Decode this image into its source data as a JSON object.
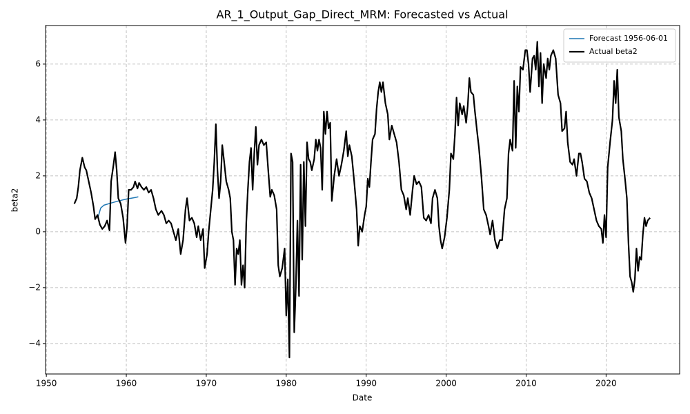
{
  "chart_data": {
    "type": "line",
    "title": "AR_1_Output_Gap_Direct_MRM: Forecasted vs Actual",
    "xlabel": "Date",
    "ylabel": "beta2",
    "xlim": [
      1949.9,
      2029.2
    ],
    "ylim": [
      -5.09,
      7.38
    ],
    "xticks": [
      1950,
      1960,
      1970,
      1980,
      1990,
      2000,
      2010,
      2020
    ],
    "yticks": [
      {
        "value": -4,
        "label": "−4"
      },
      {
        "value": -2,
        "label": "−2"
      },
      0,
      2,
      4,
      6
    ],
    "grid": true,
    "legend": "upper right",
    "series": [
      {
        "name": "Forecast 1956-06-01",
        "color": "#1f77b4",
        "width": 1.5,
        "x": [
          1956.5,
          1956.8,
          1957.2,
          1958,
          1959,
          1960,
          1961,
          1961.5
        ],
        "values": [
          0.55,
          0.85,
          0.95,
          1.02,
          1.1,
          1.17,
          1.22,
          1.25
        ]
      },
      {
        "name": "Actual beta2",
        "color": "#000000",
        "width": 2.2,
        "x": [
          1953.5,
          1953.8,
          1954.0,
          1954.2,
          1954.5,
          1954.8,
          1955.0,
          1955.3,
          1955.6,
          1955.9,
          1956.1,
          1956.4,
          1956.7,
          1957.0,
          1957.3,
          1957.6,
          1957.9,
          1958.1,
          1958.4,
          1958.6,
          1958.8,
          1959.0,
          1959.3,
          1959.6,
          1959.9,
          1960.1,
          1960.3,
          1960.6,
          1960.9,
          1961.1,
          1961.4,
          1961.6,
          1961.9,
          1962.2,
          1962.5,
          1962.8,
          1963.1,
          1963.4,
          1963.7,
          1964.0,
          1964.4,
          1964.7,
          1965.0,
          1965.3,
          1965.6,
          1965.9,
          1966.2,
          1966.5,
          1966.8,
          1967.1,
          1967.4,
          1967.6,
          1967.9,
          1968.2,
          1968.5,
          1968.8,
          1969.0,
          1969.3,
          1969.6,
          1969.8,
          1970.1,
          1970.3,
          1970.5,
          1970.8,
          1971.0,
          1971.2,
          1971.4,
          1971.6,
          1971.8,
          1972.0,
          1972.2,
          1972.5,
          1972.8,
          1973.0,
          1973.2,
          1973.4,
          1973.6,
          1973.8,
          1974.0,
          1974.2,
          1974.4,
          1974.6,
          1974.8,
          1975.0,
          1975.2,
          1975.4,
          1975.6,
          1975.8,
          1976.0,
          1976.2,
          1976.4,
          1976.6,
          1976.9,
          1977.2,
          1977.5,
          1977.8,
          1978.0,
          1978.2,
          1978.5,
          1978.8,
          1979.0,
          1979.2,
          1979.5,
          1979.8,
          1980.0,
          1980.2,
          1980.4,
          1980.6,
          1980.8,
          1981.0,
          1981.2,
          1981.4,
          1981.6,
          1981.8,
          1982.0,
          1982.2,
          1982.4,
          1982.6,
          1982.8,
          1983.0,
          1983.2,
          1983.5,
          1983.7,
          1983.9,
          1984.1,
          1984.3,
          1984.5,
          1984.7,
          1984.9,
          1985.1,
          1985.3,
          1985.5,
          1985.7,
          1986.0,
          1986.3,
          1986.6,
          1986.9,
          1987.2,
          1987.5,
          1987.7,
          1987.9,
          1988.2,
          1988.5,
          1988.8,
          1989.0,
          1989.2,
          1989.5,
          1989.8,
          1990.0,
          1990.2,
          1990.4,
          1990.6,
          1990.8,
          1991.1,
          1991.3,
          1991.5,
          1991.7,
          1991.9,
          1992.1,
          1992.4,
          1992.7,
          1992.9,
          1993.2,
          1993.5,
          1993.8,
          1994.1,
          1994.4,
          1994.7,
          1995.0,
          1995.2,
          1995.5,
          1995.8,
          1996.0,
          1996.3,
          1996.6,
          1996.9,
          1997.2,
          1997.5,
          1997.8,
          1998.1,
          1998.3,
          1998.6,
          1998.9,
          1999.1,
          1999.3,
          1999.5,
          1999.8,
          2000.1,
          2000.4,
          2000.6,
          2000.9,
          2001.1,
          2001.3,
          2001.5,
          2001.7,
          2002.0,
          2002.2,
          2002.5,
          2002.7,
          2002.9,
          2003.1,
          2003.4,
          2003.6,
          2003.9,
          2004.1,
          2004.4,
          2004.7,
          2005.0,
          2005.3,
          2005.5,
          2005.8,
          2006.1,
          2006.4,
          2006.7,
          2007.0,
          2007.3,
          2007.6,
          2007.8,
          2008.0,
          2008.3,
          2008.5,
          2008.7,
          2008.9,
          2009.1,
          2009.3,
          2009.6,
          2009.9,
          2010.1,
          2010.3,
          2010.5,
          2010.8,
          2011.0,
          2011.2,
          2011.4,
          2011.6,
          2011.8,
          2012.0,
          2012.2,
          2012.5,
          2012.7,
          2012.9,
          2013.1,
          2013.4,
          2013.7,
          2014.0,
          2014.3,
          2014.5,
          2014.8,
          2015.0,
          2015.2,
          2015.5,
          2015.8,
          2016.0,
          2016.3,
          2016.6,
          2016.8,
          2017.0,
          2017.3,
          2017.6,
          2017.9,
          2018.2,
          2018.5,
          2018.8,
          2019.1,
          2019.4,
          2019.6,
          2019.8,
          2020.0,
          2020.2,
          2020.5,
          2020.8,
          2021.0,
          2021.2,
          2021.4,
          2021.6,
          2021.9,
          2022.1,
          2022.4,
          2022.6,
          2022.8,
          2023.0,
          2023.2,
          2023.4,
          2023.6,
          2023.8,
          2024.0,
          2024.2,
          2024.4,
          2024.6,
          2024.8,
          2025.0,
          2025.2,
          2025.5
        ],
        "values": [
          1.0,
          1.2,
          1.6,
          2.2,
          2.65,
          2.3,
          2.2,
          1.8,
          1.4,
          0.9,
          0.45,
          0.6,
          0.25,
          0.1,
          0.2,
          0.4,
          0.05,
          1.8,
          2.4,
          2.85,
          2.2,
          1.2,
          1.0,
          0.5,
          -0.4,
          0.2,
          1.5,
          1.5,
          1.6,
          1.8,
          1.55,
          1.75,
          1.6,
          1.5,
          1.6,
          1.4,
          1.5,
          1.2,
          0.8,
          0.6,
          0.75,
          0.6,
          0.3,
          0.4,
          0.3,
          0.0,
          -0.3,
          0.1,
          -0.8,
          -0.3,
          0.8,
          1.2,
          0.4,
          0.5,
          0.3,
          -0.2,
          0.2,
          -0.3,
          0.1,
          -1.3,
          -0.8,
          0.0,
          0.6,
          1.5,
          2.5,
          3.85,
          2.2,
          1.2,
          1.8,
          3.1,
          2.6,
          1.8,
          1.5,
          1.2,
          0.0,
          -0.3,
          -1.9,
          -0.6,
          -0.8,
          -0.3,
          -1.9,
          -1.2,
          -2.0,
          0.3,
          1.5,
          2.5,
          3.0,
          1.5,
          2.8,
          3.75,
          2.4,
          3.1,
          3.3,
          3.1,
          3.2,
          2.0,
          1.25,
          1.5,
          1.3,
          0.8,
          -1.2,
          -1.6,
          -1.3,
          -0.6,
          -3.0,
          -1.7,
          -4.5,
          2.8,
          2.5,
          -3.6,
          -2.0,
          0.4,
          -2.3,
          2.4,
          -1.0,
          2.5,
          0.2,
          3.2,
          2.6,
          2.5,
          2.2,
          2.6,
          3.3,
          2.9,
          3.3,
          3.0,
          1.5,
          4.3,
          3.5,
          4.3,
          3.7,
          3.9,
          1.1,
          2.0,
          2.6,
          2.0,
          2.4,
          2.9,
          3.6,
          2.7,
          3.1,
          2.7,
          1.8,
          0.8,
          -0.5,
          0.2,
          0.0,
          0.6,
          0.9,
          1.9,
          1.6,
          2.5,
          3.3,
          3.5,
          4.4,
          5.0,
          5.35,
          5.0,
          5.35,
          4.6,
          4.2,
          3.3,
          3.8,
          3.5,
          3.2,
          2.5,
          1.5,
          1.3,
          0.8,
          1.2,
          0.6,
          1.5,
          2.0,
          1.7,
          1.8,
          1.6,
          0.5,
          0.4,
          0.6,
          0.3,
          1.2,
          1.5,
          1.2,
          0.2,
          -0.3,
          -0.6,
          -0.2,
          0.5,
          1.5,
          2.8,
          2.6,
          3.5,
          4.8,
          3.8,
          4.6,
          4.2,
          4.5,
          3.9,
          4.5,
          5.5,
          5.0,
          4.9,
          4.3,
          3.5,
          3.0,
          2.0,
          0.8,
          0.6,
          0.2,
          -0.1,
          0.4,
          -0.3,
          -0.6,
          -0.3,
          -0.3,
          0.8,
          1.2,
          2.8,
          3.3,
          2.9,
          5.4,
          3.0,
          5.2,
          4.3,
          5.9,
          5.8,
          6.5,
          6.5,
          6.0,
          5.0,
          6.2,
          6.3,
          5.8,
          6.8,
          5.2,
          6.4,
          4.6,
          6.0,
          5.5,
          6.2,
          5.8,
          6.3,
          6.5,
          6.2,
          4.9,
          4.6,
          3.6,
          3.7,
          4.3,
          3.2,
          2.5,
          2.4,
          2.6,
          2.0,
          2.8,
          2.8,
          2.5,
          1.9,
          1.8,
          1.4,
          1.2,
          0.8,
          0.4,
          0.2,
          0.1,
          -0.4,
          0.6,
          -0.2,
          2.3,
          3.2,
          4.0,
          5.4,
          4.6,
          5.8,
          4.1,
          3.6,
          2.6,
          1.8,
          1.2,
          -0.4,
          -1.6,
          -1.8,
          -2.15,
          -1.7,
          -0.6,
          -1.4,
          -0.9,
          -1.0,
          -0.1,
          0.5,
          0.2,
          0.4,
          0.5
        ]
      }
    ]
  }
}
